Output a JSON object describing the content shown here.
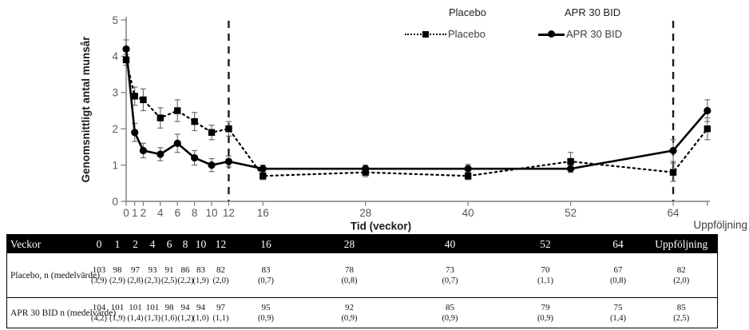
{
  "figure": {
    "legend_top": {
      "placebo": "Placebo",
      "apr": "APR 30 BID"
    }
  },
  "chart_data": {
    "type": "line",
    "xlabel": "Tid (veckor)",
    "ylabel": "Genomsnittligt antal munsår",
    "ylim": [
      0,
      5
    ],
    "yticks": [
      "0",
      "1",
      "2",
      "3",
      "4",
      "5"
    ],
    "x_weeks": [
      0,
      1,
      2,
      4,
      6,
      8,
      10,
      12,
      16,
      28,
      40,
      52,
      64,
      68
    ],
    "x_tick_weeks": [
      0,
      1,
      2,
      4,
      6,
      8,
      10,
      12,
      16,
      28,
      40,
      52,
      64,
      68
    ],
    "x_tick_labels": [
      "0",
      "1",
      "2",
      "4",
      "6",
      "8",
      "10",
      "12",
      "16",
      "28",
      "40",
      "52",
      "64",
      ""
    ],
    "followup_label": "Uppföljning",
    "vlines_weeks": [
      12,
      64
    ],
    "grid": false,
    "legend_position": "top",
    "series": [
      {
        "name": "Placebo",
        "marker": "square",
        "line_style": "dotted",
        "values": [
          3.9,
          2.9,
          2.8,
          2.3,
          2.5,
          2.2,
          1.9,
          2.0,
          0.7,
          0.8,
          0.7,
          1.1,
          0.8,
          2.0
        ],
        "errors": [
          0.15,
          0.25,
          0.3,
          0.28,
          0.3,
          0.25,
          0.2,
          0.2,
          0.1,
          0.12,
          0.1,
          0.25,
          0.25,
          0.3
        ]
      },
      {
        "name": "APR 30 BID",
        "marker": "circle",
        "line_style": "solid",
        "values": [
          4.2,
          1.9,
          1.4,
          1.3,
          1.6,
          1.2,
          1.0,
          1.1,
          0.9,
          0.9,
          0.9,
          0.9,
          1.4,
          2.5
        ],
        "errors": [
          0.25,
          0.25,
          0.2,
          0.18,
          0.25,
          0.2,
          0.18,
          0.15,
          0.1,
          0.1,
          0.12,
          0.1,
          0.3,
          0.3
        ]
      }
    ]
  },
  "table": {
    "header_label": "Veckor",
    "columns": [
      "0",
      "1",
      "2",
      "4",
      "6",
      "8",
      "10",
      "12",
      "16",
      "28",
      "40",
      "52",
      "64",
      "Uppföljning"
    ],
    "rows": [
      {
        "label": "Placebo, n (medelvärde)",
        "n": [
          "103",
          "98",
          "97",
          "93",
          "91",
          "86",
          "83",
          "82",
          "83",
          "78",
          "73",
          "70",
          "67",
          "82"
        ],
        "mean": [
          "(3,9)",
          "(2,9)",
          "(2,8)",
          "(2,3)",
          "(2,5)",
          "(2,2)",
          "(1,9)",
          "(2,0)",
          "(0,7)",
          "(0,8)",
          "(0,7)",
          "(1,1)",
          "(0,8)",
          "(2,0)"
        ]
      },
      {
        "label": "APR 30 BID n (medelvärde)",
        "n": [
          "104",
          "101",
          "101",
          "101",
          "98",
          "94",
          "94",
          "97",
          "95",
          "92",
          "85",
          "79",
          "75",
          "85"
        ],
        "mean": [
          "(4,2)",
          "(1,9)",
          "(1,4)",
          "(1,3)",
          "(1,6)",
          "(1,2)",
          "(1,0)",
          "(1,1)",
          "(0,9)",
          "(0,9)",
          "(0,9)",
          "(0,9)",
          "(1,4)",
          "(2,5)"
        ]
      }
    ]
  },
  "colors": {
    "series": "#000000",
    "axis": "#808080",
    "tick_text": "#595959",
    "error_bar": "#6e6e6e",
    "dashed_line": "#1a1a1a",
    "table_header_bg": "#000000",
    "table_header_text": "#ffffff"
  }
}
